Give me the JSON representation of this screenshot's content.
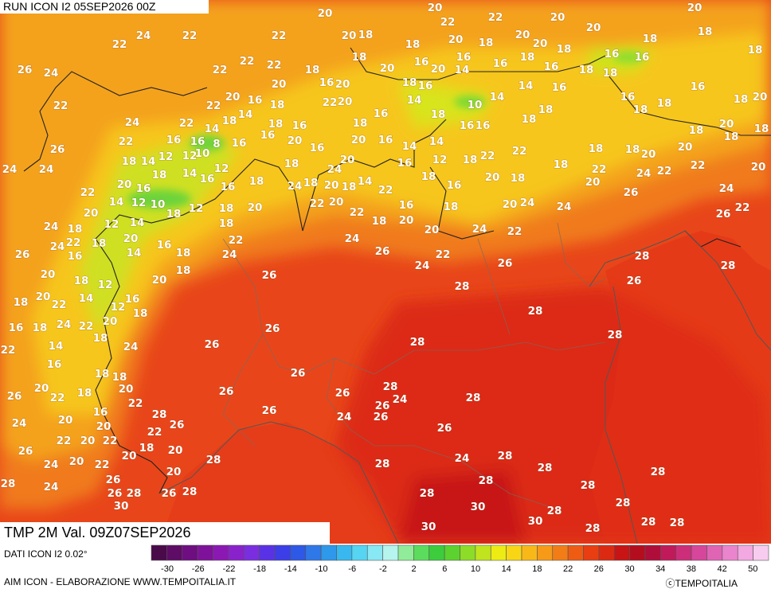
{
  "header": {
    "run": "RUN ICON I2 05SEP2026 00Z"
  },
  "footer": {
    "valid": "TMP 2M Val. 09Z07SEP2026",
    "source": "DATI ICON I2 0.02°",
    "credit": "AIM ICON - ELABORAZIONE WWW.TEMPOITALIA.IT",
    "copyright": "ⓒTEMPOITALIA"
  },
  "colorbar": {
    "labels": [
      -30,
      -26,
      -22,
      -18,
      -14,
      -10,
      -6,
      -2,
      2,
      6,
      10,
      14,
      18,
      22,
      26,
      30,
      34,
      38,
      42,
      50
    ],
    "colors": [
      "#4a0a4a",
      "#5e0c66",
      "#6e0e80",
      "#7e129a",
      "#8c18b4",
      "#8a22cc",
      "#7a2ee0",
      "#5a32e6",
      "#3c3ee8",
      "#2e58e6",
      "#2e78e8",
      "#2e98ea",
      "#38b8ee",
      "#56d4f2",
      "#88e8f4",
      "#b6f4ee",
      "#90ec98",
      "#5cdc5c",
      "#3ccc3c",
      "#5cd22e",
      "#8cdc28",
      "#c0e41e",
      "#ecec14",
      "#f8d616",
      "#f8b818",
      "#f69a18",
      "#f27c16",
      "#ee5c14",
      "#e83e12",
      "#dc2a12",
      "#c81414",
      "#b40e1e",
      "#b00e3a",
      "#c01a5a",
      "#cc2e7a",
      "#d6469a",
      "#e064b4",
      "#ea84cc",
      "#f2a8e0",
      "#f8ccee"
    ]
  },
  "map": {
    "labels": [
      20,
      20,
      22,
      20,
      20,
      24,
      22,
      22,
      22,
      20,
      18,
      18,
      22,
      20,
      18,
      20,
      20,
      20,
      18,
      18,
      18,
      26,
      24,
      22,
      22,
      22,
      18,
      18,
      20,
      16,
      16,
      20,
      16,
      18,
      16,
      18,
      18,
      16,
      16,
      20,
      16,
      20,
      18,
      16,
      14,
      14,
      16,
      18,
      16,
      18,
      20,
      22,
      22,
      20,
      16,
      18,
      22,
      20,
      14,
      10,
      14,
      18,
      16,
      18,
      18,
      24,
      22,
      14,
      18,
      14,
      18,
      16,
      18,
      16,
      18,
      16,
      16,
      18,
      18,
      20,
      18,
      26,
      22,
      16,
      16,
      8,
      16,
      16,
      20,
      16,
      20,
      16,
      14,
      14,
      24,
      24,
      18,
      14,
      12,
      12,
      10,
      12,
      18,
      18,
      24,
      20,
      16,
      18,
      12,
      18,
      22,
      22,
      18,
      18,
      18,
      20,
      20,
      18,
      20,
      22,
      22,
      24,
      22,
      22,
      20,
      16,
      18,
      14,
      16,
      16,
      24,
      18,
      20,
      18,
      14,
      22,
      16,
      20,
      18,
      20,
      26,
      24,
      20,
      14,
      12,
      10,
      18,
      12,
      18,
      20,
      22,
      20,
      22,
      18,
      20,
      16,
      18,
      20,
      24,
      24,
      26,
      22,
      24,
      18,
      12,
      14,
      18,
      22,
      24,
      20,
      24,
      22,
      26,
      24,
      22,
      16,
      18,
      20,
      14,
      16,
      18,
      24,
      26,
      22,
      26,
      28,
      28,
      24,
      20,
      18,
      12,
      20,
      18,
      26,
      26,
      18,
      20,
      22,
      14,
      12,
      16,
      18,
      28,
      22,
      20,
      24,
      16,
      18,
      26,
      28,
      22,
      14,
      18,
      24,
      26,
      28,
      28,
      16,
      18,
      18,
      26,
      26,
      20,
      22,
      18,
      20,
      22,
      26,
      26,
      28,
      24,
      28,
      24,
      20,
      16,
      20,
      28,
      26,
      26,
      24,
      26,
      26,
      26,
      22,
      20,
      22,
      22,
      18,
      20,
      20,
      24,
      20,
      22,
      26,
      28,
      24,
      28,
      28,
      24,
      26,
      20,
      28,
      28,
      28,
      26,
      28,
      26,
      28,
      28,
      28,
      28,
      30,
      30,
      28,
      28,
      30,
      30,
      28,
      28,
      28
    ]
  }
}
